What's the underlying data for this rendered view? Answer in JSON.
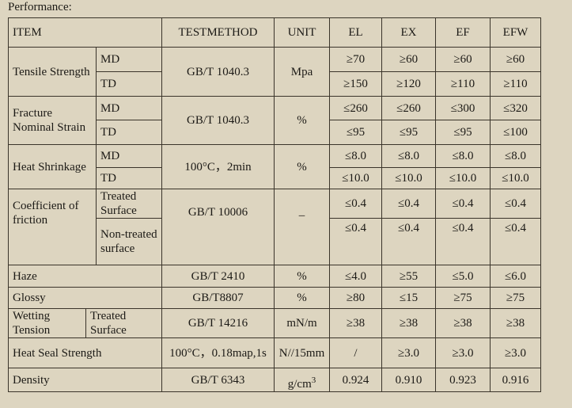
{
  "caption": "Performance:",
  "header": {
    "item": "ITEM",
    "method": "TESTMETHOD",
    "unit": "UNIT",
    "grades": [
      "EL",
      "EX",
      "EF",
      "EFW"
    ]
  },
  "tensile": {
    "label": "Tensile Strength",
    "sub": [
      "MD",
      "TD"
    ],
    "method": "GB/T 1040.3",
    "unit": "Mpa",
    "md": [
      "≥70",
      "≥60",
      "≥60",
      "≥60"
    ],
    "td": [
      "≥150",
      "≥120",
      "≥110",
      "≥110"
    ]
  },
  "fracture": {
    "label": "Fracture Nominal Strain",
    "sub": [
      "MD",
      "TD"
    ],
    "method": "GB/T 1040.3",
    "unit": "%",
    "md": [
      "≤260",
      "≤260",
      "≤300",
      "≤320"
    ],
    "td": [
      "≤95",
      "≤95",
      "≤95",
      "≤100"
    ]
  },
  "shrink": {
    "label": "Heat Shrinkage",
    "sub": [
      "MD",
      "TD"
    ],
    "method": "100°C，2min",
    "unit": "%",
    "md": [
      "≤8.0",
      "≤8.0",
      "≤8.0",
      "≤8.0"
    ],
    "td": [
      "≤10.0",
      "≤10.0",
      "≤10.0",
      "≤10.0"
    ]
  },
  "friction": {
    "label": "Coefficient of friction",
    "sub": [
      "Treated Surface",
      "Non-treated surface"
    ],
    "method": "GB/T 10006",
    "unit": "–",
    "treated": [
      "≤0.4",
      "≤0.4",
      "≤0.4",
      "≤0.4"
    ],
    "nontreated": [
      "≤0.4",
      "≤0.4",
      "≤0.4",
      "≤0.4"
    ]
  },
  "haze": {
    "label": "Haze",
    "method": "GB/T 2410",
    "unit": "%",
    "values": [
      "≤4.0",
      "≥55",
      "≤5.0",
      "≤6.0"
    ]
  },
  "glossy": {
    "label": "Glossy",
    "method": "GB/T8807",
    "unit": "%",
    "values": [
      "≥80",
      "≤15",
      "≥75",
      "≥75"
    ]
  },
  "wetting": {
    "label": "Wetting Tension",
    "sub": "Treated Surface",
    "method": "GB/T 14216",
    "unit": "mN/m",
    "values": [
      "≥38",
      "≥38",
      "≥38",
      "≥38"
    ]
  },
  "seal": {
    "label": "Heat Seal Strength",
    "method": "100°C，0.18map,1s",
    "unit": "N//15mm",
    "values": [
      "/",
      "≥3.0",
      "≥3.0",
      "≥3.0"
    ]
  },
  "density": {
    "label": "Density",
    "method": "GB/T 6343",
    "unit": "g/cm",
    "unit_sup": "3",
    "values": [
      "0.924",
      "0.910",
      "0.923",
      "0.916"
    ]
  }
}
